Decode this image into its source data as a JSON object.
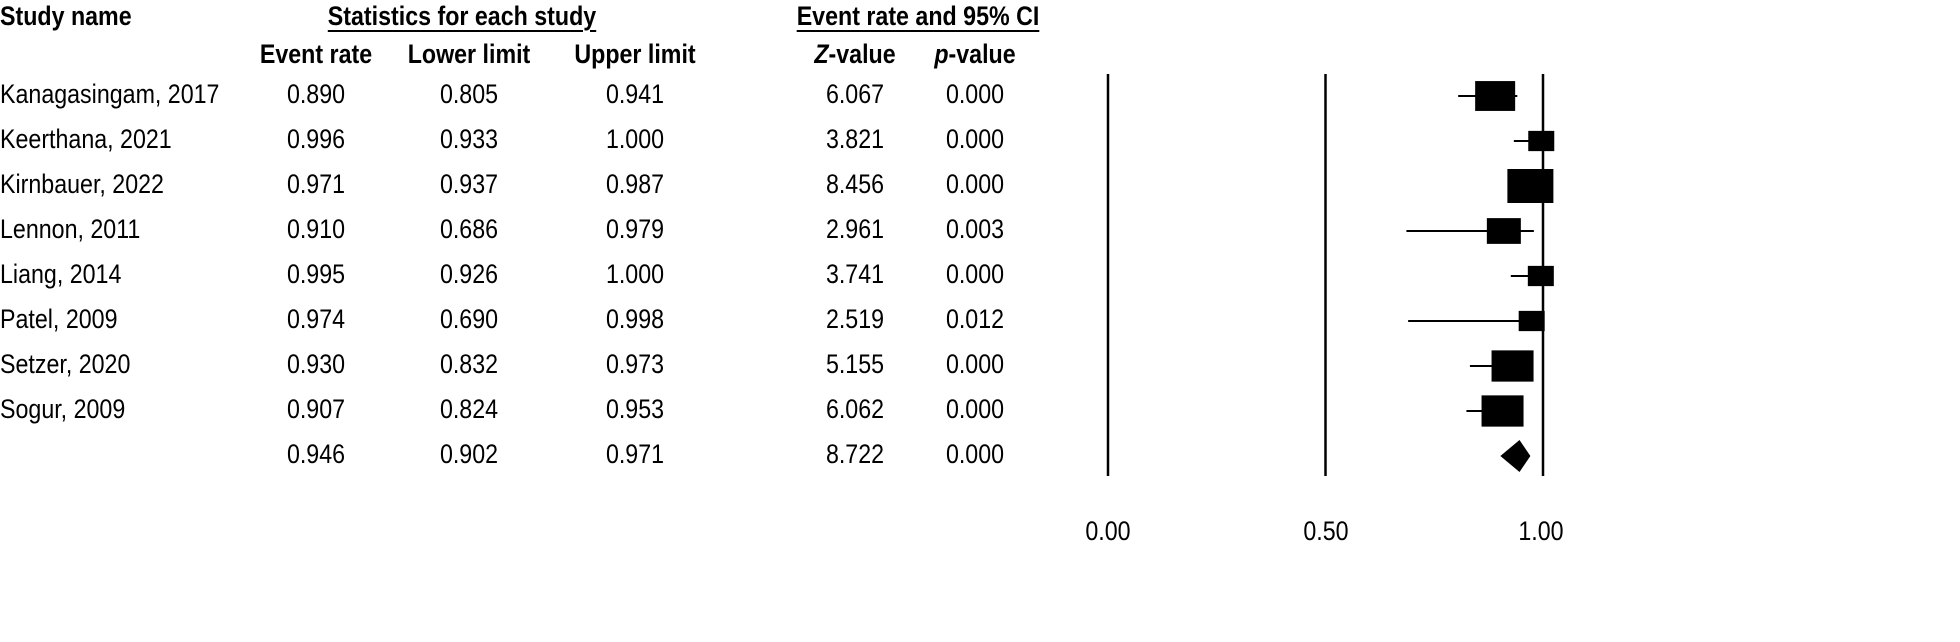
{
  "headers": {
    "study_name": "Study name",
    "statistics_group": "Statistics for each study",
    "ci_group": "Event rate and 95% CI",
    "event_rate": "Event rate",
    "lower_limit": "Lower limit",
    "upper_limit": "Upper limit",
    "z_value_italic": "Z",
    "z_value_rest": "-value",
    "p_value_italic": "p",
    "p_value_rest": "-value"
  },
  "rows": [
    {
      "study": "Kanagasingam, 2017",
      "event_rate": "0.890",
      "lower": "0.805",
      "upper": "0.941",
      "z": "6.067",
      "p": "0.000"
    },
    {
      "study": "Keerthana, 2021",
      "event_rate": "0.996",
      "lower": "0.933",
      "upper": "1.000",
      "z": "3.821",
      "p": "0.000"
    },
    {
      "study": "Kirnbauer, 2022",
      "event_rate": "0.971",
      "lower": "0.937",
      "upper": "0.987",
      "z": "8.456",
      "p": "0.000"
    },
    {
      "study": "Lennon, 2011",
      "event_rate": "0.910",
      "lower": "0.686",
      "upper": "0.979",
      "z": "2.961",
      "p": "0.003"
    },
    {
      "study": "Liang, 2014",
      "event_rate": "0.995",
      "lower": "0.926",
      "upper": "1.000",
      "z": "3.741",
      "p": "0.000"
    },
    {
      "study": "Patel, 2009",
      "event_rate": "0.974",
      "lower": "0.690",
      "upper": "0.998",
      "z": "2.519",
      "p": "0.012"
    },
    {
      "study": "Setzer, 2020",
      "event_rate": "0.930",
      "lower": "0.832",
      "upper": "0.973",
      "z": "5.155",
      "p": "0.000"
    },
    {
      "study": "Sogur, 2009",
      "event_rate": "0.907",
      "lower": "0.824",
      "upper": "0.953",
      "z": "6.062",
      "p": "0.000"
    }
  ],
  "summary": {
    "study": "",
    "event_rate": "0.946",
    "lower": "0.902",
    "upper": "0.971",
    "z": "8.722",
    "p": "0.000"
  },
  "chart_data": {
    "type": "scatter",
    "title": "Event rate and 95% CI",
    "xlim": [
      0.0,
      1.0
    ],
    "xticks": [
      "0.00",
      "0.50",
      "1.00"
    ],
    "reference_lines": [
      0.0,
      0.5,
      1.0
    ],
    "studies": [
      {
        "name": "Kanagasingam, 2017",
        "estimate": 0.89,
        "lower": 0.805,
        "upper": 0.941,
        "relative_weight": 0.13
      },
      {
        "name": "Keerthana, 2021",
        "estimate": 0.996,
        "lower": 0.933,
        "upper": 1.0,
        "relative_weight": 0.06
      },
      {
        "name": "Kirnbauer, 2022",
        "estimate": 0.971,
        "lower": 0.937,
        "upper": 0.987,
        "relative_weight": 0.16
      },
      {
        "name": "Lennon, 2011",
        "estimate": 0.91,
        "lower": 0.686,
        "upper": 0.979,
        "relative_weight": 0.1
      },
      {
        "name": "Liang, 2014",
        "estimate": 0.995,
        "lower": 0.926,
        "upper": 1.0,
        "relative_weight": 0.06
      },
      {
        "name": "Patel, 2009",
        "estimate": 0.974,
        "lower": 0.69,
        "upper": 0.998,
        "relative_weight": 0.06
      },
      {
        "name": "Setzer, 2020",
        "estimate": 0.93,
        "lower": 0.832,
        "upper": 0.973,
        "relative_weight": 0.14
      },
      {
        "name": "Sogur, 2009",
        "estimate": 0.907,
        "lower": 0.824,
        "upper": 0.953,
        "relative_weight": 0.14
      }
    ],
    "summary": {
      "estimate": 0.946,
      "lower": 0.902,
      "upper": 0.971
    }
  }
}
